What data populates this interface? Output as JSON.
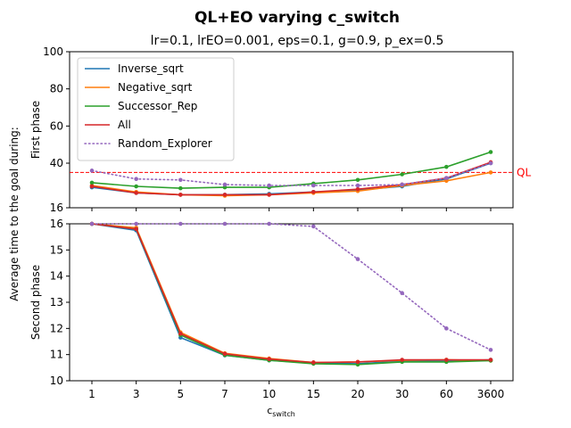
{
  "figure": {
    "title": "QL+EO varying c_switch",
    "subtitle": "lr=0.1, lrEO=0.001, eps=0.1, g=0.9, p_ex=0.5",
    "shared_ylabel": "Average time to the goal during:",
    "xlabel_base": "c",
    "xlabel_sub": "switch"
  },
  "chart_data": [
    {
      "type": "line",
      "ylabel": "First phase",
      "ylim": [
        16,
        100
      ],
      "yticks": [
        16,
        40,
        60,
        80,
        100
      ],
      "categories": [
        "1",
        "3",
        "5",
        "7",
        "10",
        "15",
        "20",
        "30",
        "60",
        "3600"
      ],
      "reference_line": {
        "label": "QL",
        "value": 35,
        "color": "#ff0000"
      },
      "legend": "top-left",
      "series": [
        {
          "name": "Inverse_sqrt",
          "color": "#1f77b4",
          "style": "solid",
          "values": [
            27,
            24,
            23,
            23,
            23.5,
            24.5,
            25.5,
            27.5,
            31.5,
            40
          ]
        },
        {
          "name": "Negative_sqrt",
          "color": "#ff7f0e",
          "style": "solid",
          "values": [
            28,
            24.5,
            23,
            22.5,
            23,
            24,
            25,
            28,
            30.5,
            35
          ]
        },
        {
          "name": "Successor_Rep",
          "color": "#2ca02c",
          "style": "solid",
          "values": [
            29.5,
            27.5,
            26.5,
            27,
            27,
            29,
            31,
            34,
            38,
            46
          ]
        },
        {
          "name": "All",
          "color": "#d62728",
          "style": "solid",
          "values": [
            27.5,
            24,
            23,
            23,
            23,
            24.5,
            26,
            28.5,
            32,
            40.5
          ]
        },
        {
          "name": "Random_Explorer",
          "color": "#9467bd",
          "style": "dotted",
          "values": [
            36,
            31.5,
            31,
            28.5,
            28,
            28,
            28,
            28.5,
            32,
            40
          ]
        }
      ]
    },
    {
      "type": "line",
      "ylabel": "Second phase",
      "ylim": [
        10,
        16
      ],
      "yticks": [
        10,
        11,
        12,
        13,
        14,
        15,
        16
      ],
      "categories": [
        "1",
        "3",
        "5",
        "7",
        "10",
        "15",
        "20",
        "30",
        "60",
        "3600"
      ],
      "series": [
        {
          "name": "Inverse_sqrt",
          "color": "#1f77b4",
          "style": "solid",
          "values": [
            16,
            15.75,
            11.65,
            10.97,
            10.78,
            10.67,
            10.65,
            10.75,
            10.75,
            10.8
          ]
        },
        {
          "name": "Negative_sqrt",
          "color": "#ff7f0e",
          "style": "solid",
          "values": [
            16,
            15.85,
            11.85,
            11.05,
            10.85,
            10.7,
            10.72,
            10.78,
            10.8,
            10.77
          ]
        },
        {
          "name": "Successor_Rep",
          "color": "#2ca02c",
          "style": "solid",
          "values": [
            16,
            15.8,
            11.75,
            10.98,
            10.78,
            10.65,
            10.62,
            10.72,
            10.72,
            10.77
          ]
        },
        {
          "name": "All",
          "color": "#d62728",
          "style": "solid",
          "values": [
            16,
            15.8,
            11.8,
            11.03,
            10.83,
            10.7,
            10.72,
            10.8,
            10.8,
            10.8
          ]
        },
        {
          "name": "Random_Explorer",
          "color": "#9467bd",
          "style": "dotted",
          "values": [
            16,
            16,
            16,
            16,
            16,
            15.9,
            14.65,
            13.35,
            12,
            11.18
          ]
        }
      ]
    }
  ]
}
